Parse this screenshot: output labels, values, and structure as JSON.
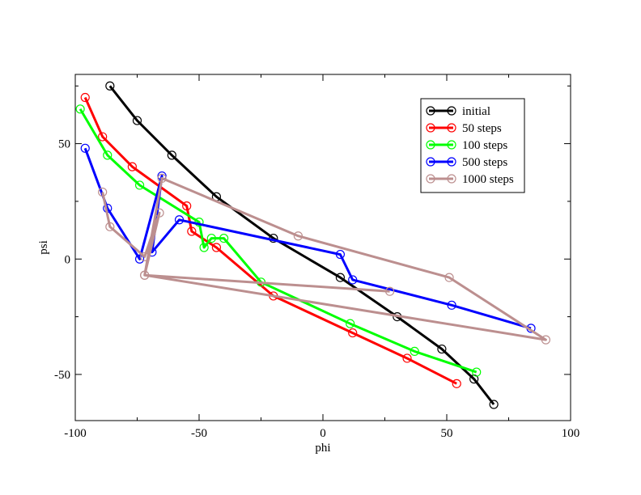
{
  "chart_data": {
    "type": "line",
    "title": "",
    "xlabel": "phi",
    "ylabel": "psi",
    "xlim": [
      -100,
      100
    ],
    "ylim": [
      -70,
      80
    ],
    "xticks": [
      -100,
      -50,
      0,
      50,
      100
    ],
    "yticks": [
      -50,
      0,
      50
    ],
    "grid": false,
    "legend_position": "top-right",
    "series": [
      {
        "name": "initial",
        "color": "#000000",
        "x": [
          -86,
          -75,
          -61,
          -43,
          -20,
          7,
          30,
          48,
          61,
          69
        ],
        "y": [
          75,
          60,
          45,
          27,
          9,
          -8,
          -25,
          -39,
          -52,
          -63
        ]
      },
      {
        "name": "50 steps",
        "color": "#ff0000",
        "x": [
          -96,
          -89,
          -77,
          -55,
          -53,
          -43,
          -20,
          12,
          34,
          54
        ],
        "y": [
          70,
          53,
          40,
          23,
          12,
          5,
          -16,
          -32,
          -43,
          -54
        ]
      },
      {
        "name": "100 steps",
        "color": "#00ff00",
        "x": [
          -98,
          -87,
          -74,
          -50,
          -48,
          -45,
          -40,
          -25,
          11,
          37,
          62
        ],
        "y": [
          65,
          45,
          32,
          16,
          5,
          9,
          9,
          -10,
          -28,
          -40,
          -49
        ]
      },
      {
        "name": "500 steps",
        "color": "#0000ff",
        "x": [
          -96,
          -87,
          -74,
          -65,
          -69,
          -58,
          7,
          12,
          52,
          84
        ],
        "y": [
          48,
          22,
          0,
          36,
          3,
          17,
          2,
          -9,
          -20,
          -30
        ]
      },
      {
        "name": "1000 steps",
        "color": "#bc8f8f",
        "x": [
          -89,
          -86,
          -72,
          -66,
          -72,
          -65,
          -10,
          51,
          90,
          -72,
          27
        ],
        "y": [
          29,
          14,
          1,
          20,
          -7,
          35,
          10,
          -8,
          -35,
          -7,
          -14
        ]
      }
    ]
  }
}
